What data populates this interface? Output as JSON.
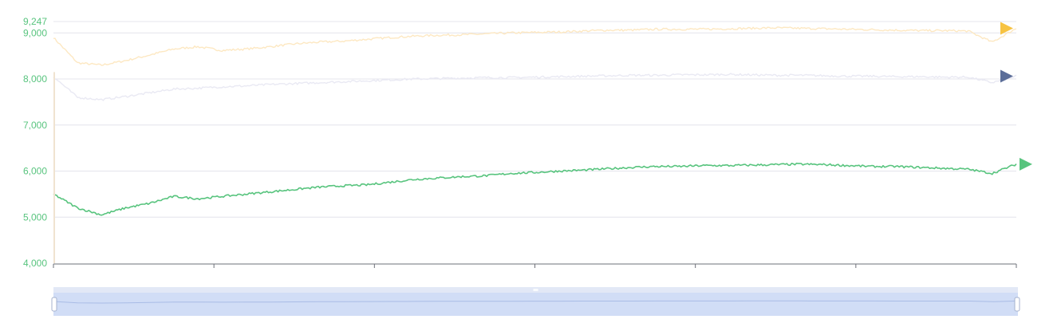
{
  "chart_data": {
    "type": "line",
    "ylim": [
      4000,
      9247
    ],
    "y_ticks": [
      4000,
      5000,
      6000,
      7000,
      8000,
      9000,
      9247
    ],
    "y_tick_labels": [
      "4,000",
      "5,000",
      "6,000",
      "7,000",
      "8,000",
      "9,000",
      "9,247"
    ],
    "grid": true,
    "x_tick_count": 7,
    "series": [
      {
        "color": "#fde8c2",
        "marker_color": "#f7c342",
        "emphasized": false,
        "values": [
          8900,
          8350,
          8300,
          8400,
          8520,
          8650,
          8700,
          8620,
          8650,
          8700,
          8760,
          8800,
          8820,
          8860,
          8900,
          8930,
          8950,
          8960,
          8980,
          9000,
          9010,
          9020,
          9040,
          9060,
          9060,
          9080,
          9080,
          9080,
          9090,
          9100,
          9110,
          9100,
          9090,
          9080,
          9070,
          9060,
          9050,
          9050,
          9040,
          8800,
          9100
        ]
      },
      {
        "color": "#e9e9f3",
        "marker_color": "#5c6e99",
        "emphasized": false,
        "values": [
          8050,
          7600,
          7550,
          7620,
          7700,
          7780,
          7800,
          7830,
          7850,
          7880,
          7900,
          7920,
          7940,
          7960,
          7980,
          8000,
          8010,
          8020,
          8030,
          8030,
          8040,
          8050,
          8060,
          8070,
          8080,
          8080,
          8090,
          8090,
          8100,
          8090,
          8080,
          8080,
          8070,
          8060,
          8060,
          8050,
          8050,
          8040,
          8040,
          7920,
          8060
        ]
      },
      {
        "color": "#58c47e",
        "marker_color": "#58c47e",
        "emphasized": true,
        "values": [
          5500,
          5200,
          5050,
          5200,
          5300,
          5450,
          5400,
          5450,
          5500,
          5550,
          5600,
          5650,
          5680,
          5700,
          5760,
          5820,
          5850,
          5880,
          5900,
          5950,
          5970,
          6000,
          6020,
          6050,
          6080,
          6100,
          6100,
          6120,
          6120,
          6130,
          6140,
          6150,
          6140,
          6120,
          6100,
          6100,
          6080,
          6060,
          6040,
          5950,
          6150
        ]
      }
    ]
  }
}
